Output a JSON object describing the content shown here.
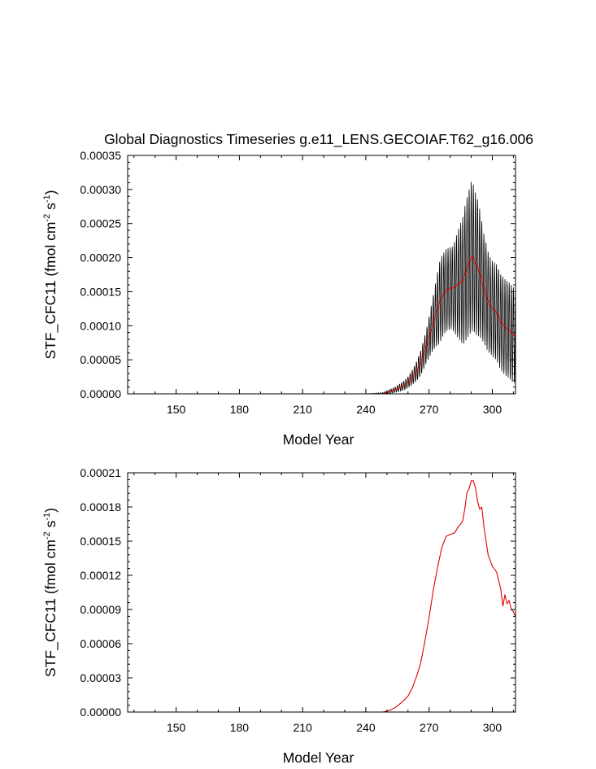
{
  "title": "Global Diagnostics Timeseries g.e11_LENS.GECOIAF.T62_g16.006",
  "chart_data": [
    {
      "type": "line",
      "xlabel": "Model Year",
      "ylabel": "STF_CFC11 (fmol cm-2 s-1)",
      "ylabel_parts": {
        "base": "STF_CFC11 (fmol cm",
        "exp1": "-2",
        "mid": " s",
        "exp2": "-1",
        "end": ")"
      },
      "xlim": [
        127,
        311
      ],
      "ylim": [
        0,
        0.00035
      ],
      "xticks": [
        150,
        180,
        210,
        240,
        270,
        300
      ],
      "xtick_labels": [
        "150",
        "180",
        "210",
        "240",
        "270",
        "300"
      ],
      "yticks": [
        0,
        5e-05,
        0.0001,
        0.00015,
        0.0002,
        0.00025,
        0.0003,
        0.00035
      ],
      "ytick_labels": [
        "0.00000",
        "0.00005",
        "0.00010",
        "0.00015",
        "0.00020",
        "0.00025",
        "0.00030",
        "0.00035"
      ],
      "series": [
        {
          "color": "#000000",
          "kind": "monthly",
          "x": [
            127,
            240,
            248,
            251,
            254,
            257,
            260,
            263,
            266,
            269,
            272,
            275,
            278,
            281,
            284,
            287,
            290,
            293,
            296,
            299,
            302,
            305,
            308,
            311
          ],
          "amplitude": [
            0,
            0,
            2e-06,
            3e-06,
            4e-06,
            6e-06,
            8e-06,
            1.2e-05,
            1.8e-05,
            2.5e-05,
            4e-05,
            6e-05,
            6e-05,
            6e-05,
            8e-05,
            0.0001,
            0.00011,
            0.0001,
            8e-05,
            7e-05,
            7e-05,
            7e-05,
            7e-05,
            7e-05
          ]
        },
        {
          "color": "#e00000",
          "kind": "annual",
          "x": [
            127,
            248,
            250,
            252,
            254,
            256,
            258,
            260,
            262,
            264,
            266,
            268,
            270,
            272,
            274,
            276,
            278,
            280,
            282,
            284,
            286,
            288,
            289,
            290,
            291,
            292,
            294,
            296,
            298,
            300,
            302,
            304,
            306,
            308,
            310,
            311
          ],
          "values": [
            0,
            0,
            2e-06,
            4e-06,
            6e-06,
            9e-06,
            1.2e-05,
            1.7e-05,
            2.4e-05,
            3.3e-05,
            4.5e-05,
            6.3e-05,
            8.3e-05,
            0.000105,
            0.000125,
            0.000142,
            0.000152,
            0.000155,
            0.000156,
            0.000162,
            0.000166,
            0.000185,
            0.000193,
            0.000201,
            0.0002,
            0.000192,
            0.000178,
            0.000155,
            0.000135,
            0.000125,
            0.00012,
            0.000105,
            9.8e-05,
            9.3e-05,
            8.6e-05,
            8.7e-05
          ]
        }
      ]
    },
    {
      "type": "line",
      "xlabel": "Model Year",
      "ylabel": "STF_CFC11 (fmol cm-2 s-1)",
      "ylabel_parts": {
        "base": "STF_CFC11 (fmol cm",
        "exp1": "-2",
        "mid": " s",
        "exp2": "-1",
        "end": ")"
      },
      "xlim": [
        127,
        311
      ],
      "ylim": [
        0,
        0.00021
      ],
      "xticks": [
        150,
        180,
        210,
        240,
        270,
        300
      ],
      "xtick_labels": [
        "150",
        "180",
        "210",
        "240",
        "270",
        "300"
      ],
      "yticks": [
        0,
        3e-05,
        6e-05,
        9e-05,
        0.00012,
        0.00015,
        0.00018,
        0.00021
      ],
      "ytick_labels": [
        "0.00000",
        "0.00003",
        "0.00006",
        "0.00009",
        "0.00012",
        "0.00015",
        "0.00018",
        "0.00021"
      ],
      "series": [
        {
          "color": "#e00000",
          "kind": "annual",
          "x": [
            127,
            248,
            250,
            252,
            254,
            256,
            258,
            260,
            262,
            264,
            266,
            268,
            270,
            272,
            274,
            276,
            278,
            280,
            282,
            284,
            285,
            286,
            287,
            288,
            289,
            290,
            291,
            292,
            293,
            294,
            295,
            296,
            298,
            300,
            302,
            304,
            305,
            306,
            307,
            308,
            309,
            310,
            311
          ],
          "values": [
            0,
            0,
            8e-07,
            2e-06,
            4e-06,
            7e-06,
            1e-05,
            1.4e-05,
            2.1e-05,
            3.1e-05,
            4.3e-05,
            6.2e-05,
            8.3e-05,
            0.000107,
            0.000127,
            0.000144,
            0.000154,
            0.000156,
            0.000157,
            0.000163,
            0.000165,
            0.000168,
            0.000179,
            0.000193,
            0.000196,
            0.000203,
            0.000203,
            0.000197,
            0.000185,
            0.000178,
            0.00018,
            0.000163,
            0.000138,
            0.000128,
            0.000123,
            0.000108,
            9.3e-05,
            0.000103,
            9.5e-05,
            9.8e-05,
            9e-05,
            8.8e-05,
            8.4e-05
          ]
        }
      ]
    }
  ]
}
